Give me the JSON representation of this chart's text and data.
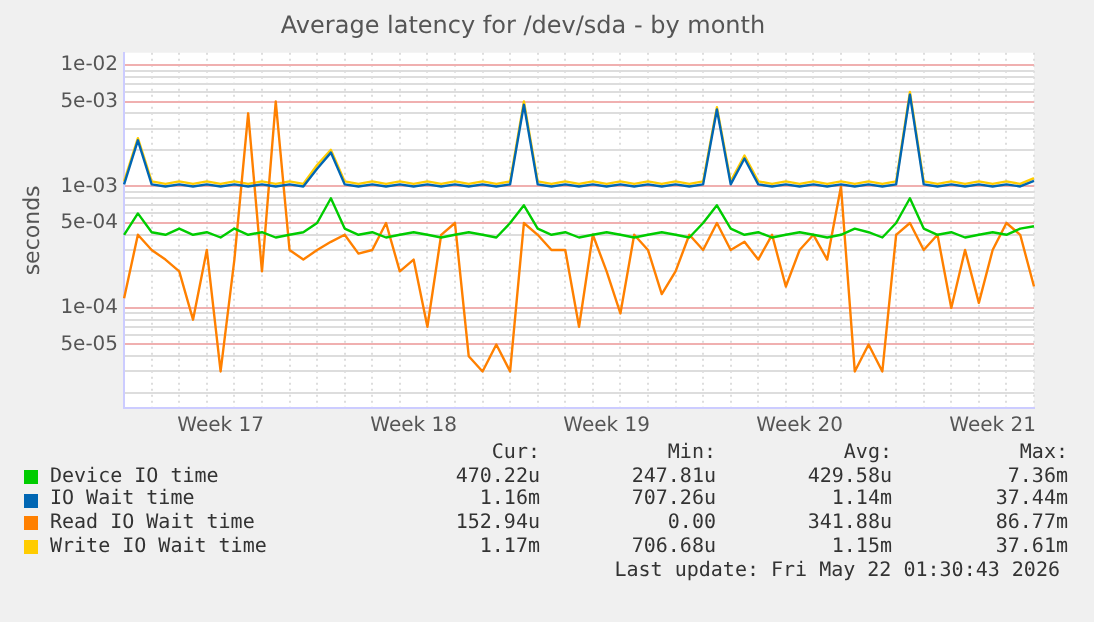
{
  "chart_data": {
    "type": "line",
    "title": "Average latency for /dev/sda - by month",
    "ylabel": "seconds",
    "log": "y",
    "grid": true,
    "legend": "bottom",
    "marker": "none",
    "line_style": "solid",
    "categories": [
      null,
      null,
      null,
      null,
      null,
      null,
      null,
      "Week 17",
      null,
      null,
      null,
      null,
      null,
      null,
      null,
      null,
      null,
      null,
      null,
      null,
      null,
      "Week 18",
      null,
      null,
      null,
      null,
      null,
      null,
      null,
      null,
      null,
      null,
      null,
      null,
      null,
      "Week 19",
      null,
      null,
      null,
      null,
      null,
      null,
      null,
      null,
      null,
      null,
      null,
      null,
      null,
      "Week 20",
      null,
      null,
      null,
      null,
      null,
      null,
      null,
      null,
      null,
      null,
      null,
      null,
      null,
      "Week 21",
      null,
      null,
      null
    ],
    "ylim": [
      1.5e-05,
      0.0126
    ],
    "yticks": [
      {
        "value": 2e-05,
        "label": null
      },
      {
        "value": 3e-05,
        "label": null
      },
      {
        "value": 4e-05,
        "label": null
      },
      {
        "value": 5e-05,
        "label": "5e-05"
      },
      {
        "value": 6e-05,
        "label": null
      },
      {
        "value": 7e-05,
        "label": null
      },
      {
        "value": 8e-05,
        "label": null
      },
      {
        "value": 9e-05,
        "label": null
      },
      {
        "value": 0.0001,
        "label": "1e-04"
      },
      {
        "value": 0.0002,
        "label": null
      },
      {
        "value": 0.0003,
        "label": null
      },
      {
        "value": 0.0004,
        "label": null
      },
      {
        "value": 0.0005,
        "label": "5e-04"
      },
      {
        "value": 0.0006,
        "label": null
      },
      {
        "value": 0.0007,
        "label": null
      },
      {
        "value": 0.0008,
        "label": null
      },
      {
        "value": 0.0009,
        "label": null
      },
      {
        "value": 0.001,
        "label": "1e-03"
      },
      {
        "value": 0.002,
        "label": null
      },
      {
        "value": 0.003,
        "label": null
      },
      {
        "value": 0.004,
        "label": null
      },
      {
        "value": 0.005,
        "label": "5e-03"
      },
      {
        "value": 0.006,
        "label": null
      },
      {
        "value": 0.007,
        "label": null
      },
      {
        "value": 0.008,
        "label": null
      },
      {
        "value": 0.009,
        "label": null
      },
      {
        "value": 0.01,
        "label": "1e-02"
      }
    ],
    "series": [
      {
        "name": "Device IO time",
        "color": "#00cc00",
        "values": [
          0.0004,
          0.0006,
          0.00042,
          0.0004,
          0.00045,
          0.0004,
          0.00042,
          0.00038,
          0.00045,
          0.0004,
          0.00042,
          0.00038,
          0.0004,
          0.00042,
          0.0005,
          0.0008,
          0.00045,
          0.0004,
          0.00042,
          0.00038,
          0.0004,
          0.00042,
          0.0004,
          0.00038,
          0.0004,
          0.00042,
          0.0004,
          0.00038,
          0.0005,
          0.0007,
          0.00045,
          0.0004,
          0.00042,
          0.00038,
          0.0004,
          0.00042,
          0.0004,
          0.00038,
          0.0004,
          0.00042,
          0.0004,
          0.00038,
          0.0005,
          0.0007,
          0.00045,
          0.0004,
          0.00042,
          0.00038,
          0.0004,
          0.00042,
          0.0004,
          0.00038,
          0.0004,
          0.00045,
          0.00042,
          0.00038,
          0.0005,
          0.0008,
          0.00045,
          0.0004,
          0.00042,
          0.00038,
          0.0004,
          0.00042,
          0.0004,
          0.00045,
          0.00047
        ]
      },
      {
        "name": "IO Wait time",
        "color": "#0066b3",
        "values": [
          0.00104,
          0.0024,
          0.00104,
          0.001,
          0.00104,
          0.001,
          0.00104,
          0.001,
          0.00104,
          0.001,
          0.00104,
          0.001,
          0.00104,
          0.001,
          0.0014,
          0.0019,
          0.00104,
          0.001,
          0.00104,
          0.001,
          0.00104,
          0.001,
          0.00104,
          0.001,
          0.00104,
          0.001,
          0.00104,
          0.001,
          0.00104,
          0.0047,
          0.00104,
          0.001,
          0.00104,
          0.001,
          0.00104,
          0.001,
          0.00104,
          0.001,
          0.00104,
          0.001,
          0.00104,
          0.001,
          0.00104,
          0.0043,
          0.00104,
          0.0017,
          0.00104,
          0.001,
          0.00104,
          0.001,
          0.00104,
          0.001,
          0.00104,
          0.001,
          0.00104,
          0.001,
          0.00104,
          0.0057,
          0.00104,
          0.001,
          0.00104,
          0.001,
          0.00104,
          0.001,
          0.00104,
          0.001,
          0.00111
        ]
      },
      {
        "name": "Read IO Wait time",
        "color": "#ff8000",
        "values": [
          0.00012,
          0.0004,
          0.0003,
          0.00025,
          0.0002,
          8e-05,
          0.0003,
          3e-05,
          0.00025,
          0.004,
          0.0002,
          0.005,
          0.0003,
          0.00025,
          0.0003,
          0.00035,
          0.0004,
          0.00028,
          0.0003,
          0.0005,
          0.0002,
          0.00025,
          7e-05,
          0.0004,
          0.0005,
          4e-05,
          3e-05,
          5e-05,
          3e-05,
          0.0005,
          0.0004,
          0.0003,
          0.0003,
          7e-05,
          0.0004,
          0.0002,
          9e-05,
          0.0004,
          0.0003,
          0.00013,
          0.0002,
          0.0004,
          0.0003,
          0.0005,
          0.0003,
          0.00035,
          0.00025,
          0.0004,
          0.00015,
          0.0003,
          0.0004,
          0.00025,
          0.001,
          3e-05,
          5e-05,
          3e-05,
          0.0004,
          0.0005,
          0.0003,
          0.0004,
          0.0001,
          0.0003,
          0.00011,
          0.0003,
          0.0005,
          0.0004,
          0.00015
        ]
      },
      {
        "name": "Write IO Wait time",
        "color": "#ffcc00",
        "values": [
          0.0011,
          0.0025,
          0.0011,
          0.00105,
          0.0011,
          0.00105,
          0.0011,
          0.00105,
          0.0011,
          0.00105,
          0.0011,
          0.00105,
          0.0011,
          0.00105,
          0.0015,
          0.002,
          0.0011,
          0.00105,
          0.0011,
          0.00105,
          0.0011,
          0.00105,
          0.0011,
          0.00105,
          0.0011,
          0.00105,
          0.0011,
          0.00105,
          0.0011,
          0.005,
          0.0011,
          0.00105,
          0.0011,
          0.00105,
          0.0011,
          0.00105,
          0.0011,
          0.00105,
          0.0011,
          0.00105,
          0.0011,
          0.00105,
          0.0011,
          0.0045,
          0.0011,
          0.0018,
          0.0011,
          0.00105,
          0.0011,
          0.00105,
          0.0011,
          0.00105,
          0.0011,
          0.00105,
          0.0011,
          0.00105,
          0.0011,
          0.006,
          0.0011,
          0.00105,
          0.0011,
          0.00105,
          0.0011,
          0.00105,
          0.0011,
          0.00105,
          0.00117
        ]
      }
    ],
    "annotations": [
      "Cur:",
      "Min:",
      "Avg:",
      "Max:",
      "470.22u",
      "247.81u",
      "429.58u",
      "7.36m",
      "1.16m",
      "707.26u",
      "1.14m",
      "37.44m",
      "152.94u",
      "0.00",
      "341.88u",
      "86.77m",
      "1.17m",
      "706.68u",
      "1.15m",
      "37.61m",
      "Last update: Fri May 22 01:30:43 2026"
    ]
  }
}
